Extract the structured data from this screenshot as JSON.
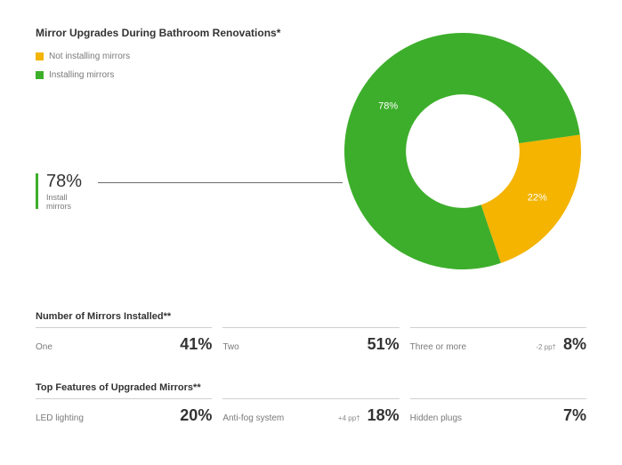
{
  "title": "Mirror Upgrades During Bathroom Renovations*",
  "legend": [
    {
      "label": "Not installing mirrors",
      "color": "#f4b400"
    },
    {
      "label": "Installing mirrors",
      "color": "#3dae2b"
    }
  ],
  "donut": {
    "type": "donut",
    "slices": [
      {
        "label": "78%",
        "value": 78,
        "color": "#3dae2b",
        "label_color": "#ffffff"
      },
      {
        "label": "22%",
        "value": 22,
        "color": "#f4b400",
        "label_color": "#ffffff"
      }
    ],
    "inner_radius_ratio": 0.48,
    "start_angle_deg": 0,
    "label_fontsize": 11,
    "background_color": "#ffffff"
  },
  "callout": {
    "value": "78%",
    "sub": "Install mirrors"
  },
  "section1": {
    "title": "Number of Mirrors Installed**",
    "items": [
      {
        "label": "One",
        "value": "41%",
        "delta": ""
      },
      {
        "label": "Two",
        "value": "51%",
        "delta": ""
      },
      {
        "label": "Three or more",
        "value": "8%",
        "delta": "-2 pp†"
      }
    ]
  },
  "section2": {
    "title": "Top Features of Upgraded Mirrors**",
    "items": [
      {
        "label": "LED lighting",
        "value": "20%",
        "delta": ""
      },
      {
        "label": "Anti-fog system",
        "value": "18%",
        "delta": "+4 pp†"
      },
      {
        "label": "Hidden plugs",
        "value": "7%",
        "delta": ""
      }
    ]
  },
  "styling": {
    "title_fontsize": 12,
    "legend_fontsize": 10,
    "callout_value_fontsize": 20,
    "callout_sub_fontsize": 9,
    "section_title_fontsize": 11,
    "stat_label_fontsize": 10,
    "stat_value_fontsize": 18,
    "stat_delta_fontsize": 8,
    "divider_color": "#cfcfcf",
    "text_color": "#333333",
    "muted_text_color": "#7a7a7a",
    "callout_line_color": "#6a6a6a"
  }
}
